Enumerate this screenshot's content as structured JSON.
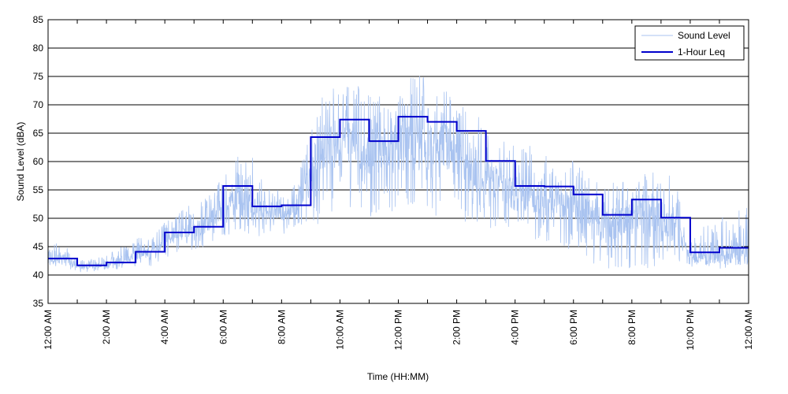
{
  "chart_data": {
    "type": "line",
    "title": "",
    "xlabel": "Time (HH:MM)",
    "ylabel": "Sound Level (dBA)",
    "ylim": [
      35,
      85
    ],
    "yticks": [
      35,
      40,
      45,
      50,
      55,
      60,
      65,
      70,
      75,
      80,
      85
    ],
    "xlim_hours": [
      0,
      24
    ],
    "xtick_hours": [
      0,
      2,
      4,
      6,
      8,
      10,
      12,
      14,
      16,
      18,
      20,
      22,
      24
    ],
    "xtick_labels": [
      "12:00 AM",
      "2:00 AM",
      "4:00 AM",
      "6:00 AM",
      "8:00 AM",
      "10:00 AM",
      "12:00 PM",
      "2:00 PM",
      "4:00 PM",
      "6:00 PM",
      "8:00 PM",
      "10:00 PM",
      "12:00 AM"
    ],
    "grid": "horizontal",
    "legend_position": "top-right",
    "series": [
      {
        "name": "Sound Level",
        "color": "#a9c3f0",
        "style": "thin-fluctuating",
        "x_hours": [
          0,
          0.5,
          1,
          1.5,
          2,
          2.5,
          3,
          3.5,
          4,
          4.5,
          5,
          5.5,
          6,
          6.5,
          7,
          7.5,
          8,
          8.5,
          9,
          9.5,
          10,
          10.5,
          11,
          11.5,
          12,
          12.5,
          13,
          13.5,
          14,
          14.5,
          15,
          15.5,
          16,
          16.5,
          17,
          17.5,
          18,
          18.5,
          19,
          19.5,
          20,
          20.5,
          21,
          21.5,
          22,
          22.5,
          23,
          23.5,
          24
        ],
        "values": [
          42.5,
          43,
          41.5,
          41.5,
          42,
          42.5,
          43.5,
          44,
          46,
          48,
          48,
          49,
          52,
          53,
          51,
          51.5,
          51,
          52,
          57,
          62,
          63,
          64,
          61,
          62,
          62,
          64,
          62,
          63,
          61,
          60,
          57,
          56,
          54,
          54,
          53,
          53,
          52,
          51,
          49,
          49,
          49.5,
          50,
          49,
          48,
          43,
          43,
          43,
          43.5,
          43.5
        ],
        "min_envelope": [
          41.5,
          41.5,
          40.5,
          40.5,
          41,
          41,
          41.5,
          41.5,
          43,
          44,
          44.5,
          45,
          46,
          47,
          46.5,
          47,
          46.5,
          47,
          48,
          50,
          51,
          52,
          50,
          50,
          49,
          50,
          51,
          50,
          50,
          49,
          48,
          47.5,
          47,
          46.5,
          46,
          45.5,
          44,
          42,
          41,
          41,
          41,
          41,
          42,
          42,
          41.5,
          41,
          41,
          41.5,
          41.5
        ],
        "max_envelope": [
          45.5,
          46,
          42.5,
          43,
          43.5,
          45,
          46.5,
          47,
          49.5,
          52,
          52.5,
          55,
          58,
          61,
          61.5,
          56,
          55,
          56,
          66,
          73,
          74,
          74,
          72,
          72,
          73,
          79,
          74,
          73,
          72,
          70,
          66,
          64,
          63,
          63,
          62,
          61,
          60,
          59,
          56,
          57,
          58,
          59,
          60,
          56,
          47,
          49,
          50,
          52,
          52
        ]
      },
      {
        "name": "1-Hour Leq",
        "color": "#0000cc",
        "style": "step",
        "hour_start": [
          0,
          1,
          2,
          3,
          4,
          5,
          6,
          7,
          8,
          9,
          10,
          11,
          12,
          13,
          14,
          15,
          16,
          17,
          18,
          19,
          20,
          21,
          22,
          23
        ],
        "values": [
          42.9,
          41.7,
          42.2,
          44.1,
          47.5,
          48.5,
          55.7,
          52.1,
          52.3,
          64.3,
          67.4,
          63.6,
          67.9,
          67.0,
          65.4,
          60.1,
          55.7,
          55.6,
          54.2,
          50.6,
          53.3,
          50.1,
          44.0,
          44.8
        ]
      }
    ]
  }
}
